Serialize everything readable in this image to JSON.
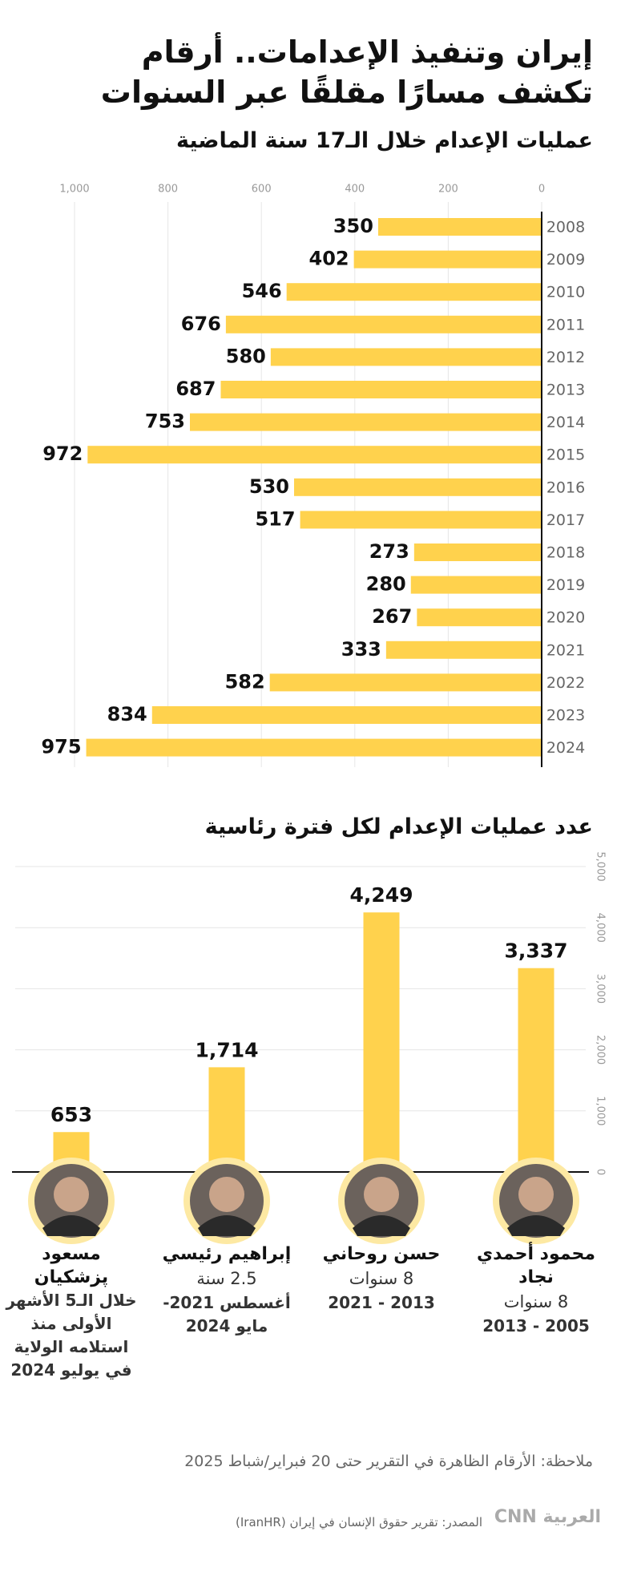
{
  "title": "إيران وتنفيذ الإعدامات.. أرقام تكشف مسارًا مقلقًا عبر السنوات",
  "chart_data": [
    {
      "type": "hbar",
      "title": "عمليات الإعدام خلال الـ17 سنة الماضية",
      "categories": [
        "2008",
        "2009",
        "2010",
        "2011",
        "2012",
        "2013",
        "2014",
        "2015",
        "2016",
        "2017",
        "2018",
        "2019",
        "2020",
        "2021",
        "2022",
        "2023",
        "2024"
      ],
      "values": [
        350,
        402,
        546,
        676,
        580,
        687,
        753,
        972,
        530,
        517,
        273,
        280,
        267,
        333,
        582,
        834,
        975
      ],
      "color": "#ffd24d",
      "xlim": [
        0,
        1000
      ],
      "xticks": [
        0,
        200,
        400,
        600,
        800,
        {
          "value": 1000,
          "label": "1,000"
        }
      ],
      "grid": true
    },
    {
      "type": "bar",
      "title": "عدد عمليات الإعدام لكل فترة رئاسية",
      "categories": [
        "محمود أحمدي نجاد",
        "حسن روحاني",
        "إبراهيم رئيسي",
        "مسعود پزشكيان"
      ],
      "values": [
        3337,
        4249,
        1714,
        653
      ],
      "value_labels": [
        "3,337",
        "4,249",
        "1,714",
        "653"
      ],
      "periods": [
        {
          "duration": "8 سنوات",
          "dates": "2005 - 2013"
        },
        {
          "duration": "8 سنوات",
          "dates": "2013 - 2021"
        },
        {
          "duration": "2.5 سنة",
          "dates": "أغسطس 2021- مايو 2024"
        },
        {
          "dates": "خلال الـ5 الأشهر الأولى منذ استلامه الولاية في يوليو 2024"
        }
      ],
      "color": "#ffd24d",
      "ylim": [
        0,
        5000
      ],
      "yticks": [
        0,
        {
          "value": 1000,
          "label": "1,000"
        },
        {
          "value": 2000,
          "label": "2,000"
        },
        {
          "value": 3000,
          "label": "3,000"
        },
        {
          "value": 4000,
          "label": "4,000"
        },
        {
          "value": 5000,
          "label": "5,000"
        }
      ],
      "grid": true
    }
  ],
  "note": "ملاحظة: الأرقام الظاهرة في التقرير حتى 20 فبراير/شباط 2025",
  "source": "المصدر: تقرير حقوق الإنسان في إيران (IranHR)",
  "logo": "العربية CNN"
}
